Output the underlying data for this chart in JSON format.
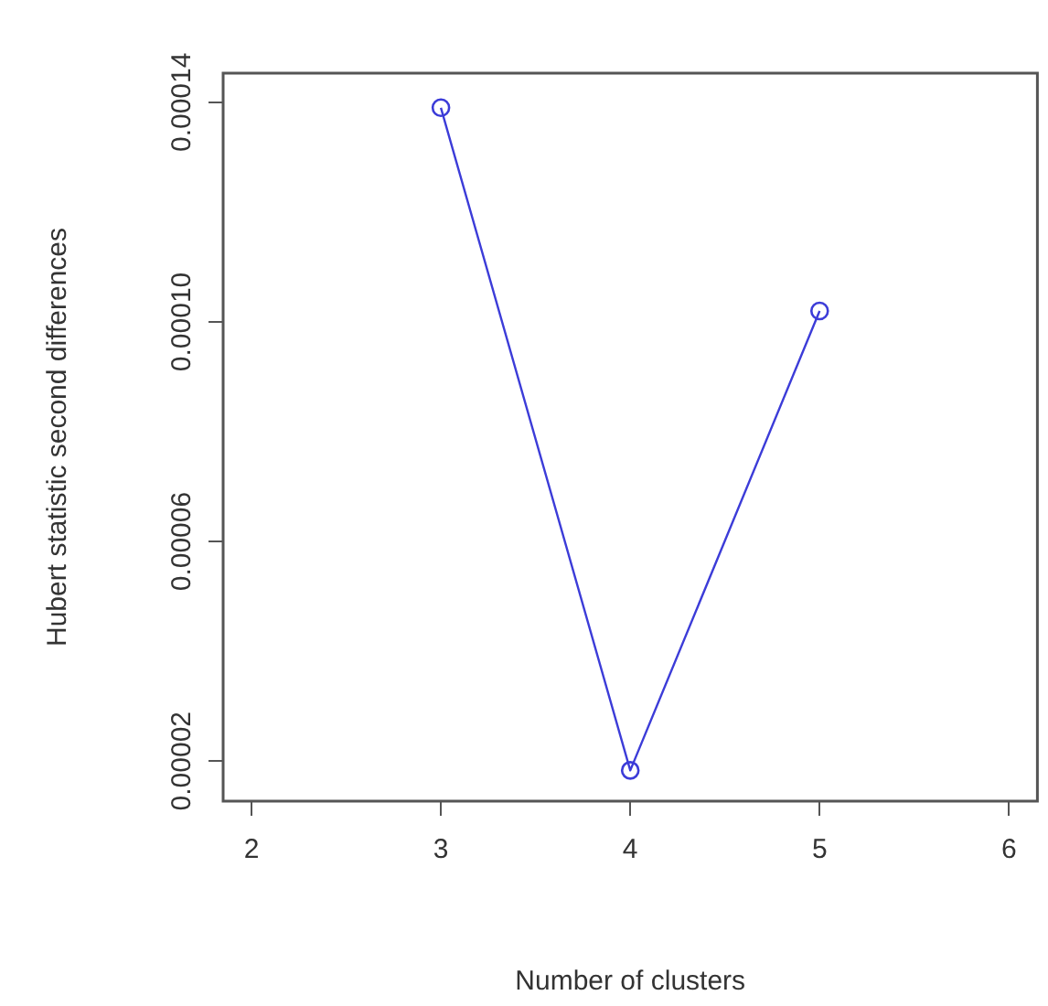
{
  "chart_data": {
    "type": "line",
    "xlabel": "Number of clusters",
    "ylabel": "Hubert statistic second differences",
    "x": [
      3,
      4,
      5
    ],
    "series": [
      {
        "color": "#3c3cd8",
        "values": [
          0.000139,
          1.83e-05,
          0.000102
        ]
      }
    ],
    "marker": "circle",
    "line_style": "solid",
    "grid": false,
    "legend": false,
    "xlim": [
      1.85,
      6.15
    ],
    "xticks": [
      2,
      3,
      4,
      5,
      6
    ],
    "ylim": [
      1.27e-05,
      0.0001453
    ],
    "yticks": [
      {
        "value": 2e-05,
        "label": "0.00002"
      },
      {
        "value": 6e-05,
        "label": "0.00006"
      },
      {
        "value": 0.0001,
        "label": "0.00010"
      },
      {
        "value": 0.00014,
        "label": "0.00014"
      }
    ]
  }
}
